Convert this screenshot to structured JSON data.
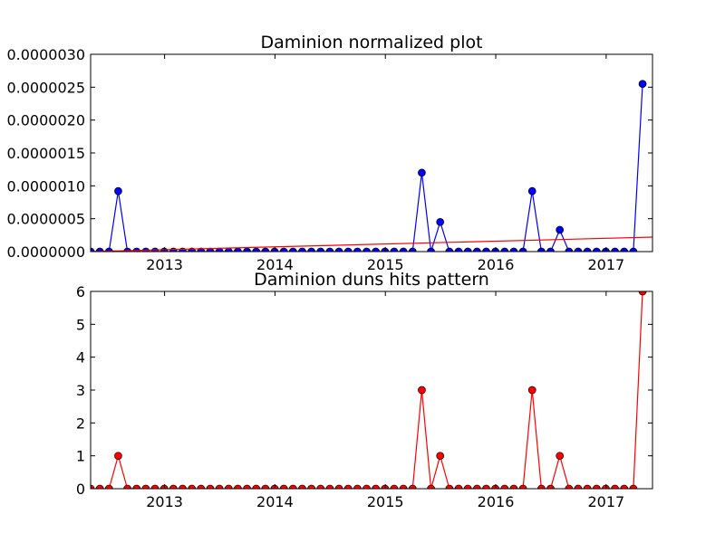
{
  "chart_data": [
    {
      "type": "line",
      "title": "Daminion normalized plot",
      "xlabel": "",
      "ylabel": "",
      "xlim": [
        2012.33,
        2017.42
      ],
      "ylim": [
        0,
        3e-06
      ],
      "x_ticks": [
        2013,
        2014,
        2015,
        2016,
        2017
      ],
      "x_tick_labels": [
        "2013",
        "2014",
        "2015",
        "2016",
        "2017"
      ],
      "y_ticks": [
        0,
        5e-07,
        1e-06,
        1.5e-06,
        2e-06,
        2.5e-06,
        3e-06
      ],
      "y_tick_labels": [
        "0.0000000",
        "0.0000005",
        "0.0000010",
        "0.0000015",
        "0.0000020",
        "0.0000025",
        "0.0000030"
      ],
      "grid": false,
      "series": [
        {
          "color": "#0000ff",
          "marker": "circle",
          "x_start": 2012.33,
          "x_step": 0.0833333,
          "values": [
            0,
            0,
            0,
            9.2e-07,
            0,
            0,
            0,
            0,
            0,
            0,
            0,
            0,
            0,
            0,
            0,
            0,
            0,
            0,
            0,
            0,
            0,
            0,
            0,
            0,
            0,
            0,
            0,
            0,
            0,
            0,
            0,
            0,
            0,
            0,
            0,
            0,
            1.2e-06,
            0,
            4.5e-07,
            0,
            0,
            0,
            0,
            0,
            0,
            0,
            0,
            0,
            9.2e-07,
            0,
            0,
            3.3e-07,
            0,
            0,
            0,
            0,
            0,
            0,
            0,
            0,
            2.55e-06
          ]
        },
        {
          "color": "#ff0000",
          "marker": "none",
          "kind": "trend",
          "x": [
            2012.33,
            2017.42
          ],
          "values": [
            0,
            2.2e-07
          ]
        }
      ]
    },
    {
      "type": "line",
      "title": "Daminion duns hits pattern",
      "xlabel": "",
      "ylabel": "",
      "xlim": [
        2012.33,
        2017.42
      ],
      "ylim": [
        0,
        6
      ],
      "x_ticks": [
        2013,
        2014,
        2015,
        2016,
        2017
      ],
      "x_tick_labels": [
        "2013",
        "2014",
        "2015",
        "2016",
        "2017"
      ],
      "y_ticks": [
        0,
        1,
        2,
        3,
        4,
        5,
        6
      ],
      "y_tick_labels": [
        "0",
        "1",
        "2",
        "3",
        "4",
        "5",
        "6"
      ],
      "grid": false,
      "series": [
        {
          "color": "#ff0000",
          "marker": "circle",
          "x_start": 2012.33,
          "x_step": 0.0833333,
          "values": [
            0,
            0,
            0,
            1,
            0,
            0,
            0,
            0,
            0,
            0,
            0,
            0,
            0,
            0,
            0,
            0,
            0,
            0,
            0,
            0,
            0,
            0,
            0,
            0,
            0,
            0,
            0,
            0,
            0,
            0,
            0,
            0,
            0,
            0,
            0,
            0,
            3,
            0,
            1,
            0,
            0,
            0,
            0,
            0,
            0,
            0,
            0,
            0,
            3,
            0,
            0,
            1,
            0,
            0,
            0,
            0,
            0,
            0,
            0,
            0,
            6
          ]
        }
      ]
    }
  ]
}
